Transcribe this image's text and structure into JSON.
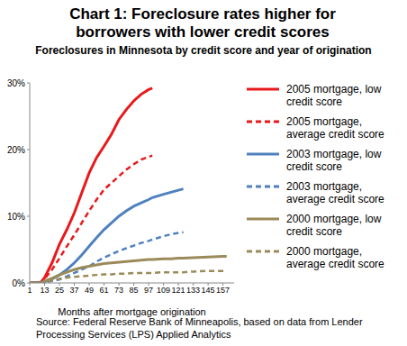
{
  "chart_data": {
    "type": "line",
    "title": "Chart 1: Foreclosure rates higher for borrowers with lower credit scores",
    "subtitle": "Foreclosures in Minnesota by credit score and year of origination",
    "x_label": "Months after mortgage origination",
    "source": "Source: Federal Reserve Bank of Minneapolis, based on data from Lender Processing Services (LPS) Applied Analytics",
    "x": [
      1,
      10,
      13,
      19,
      25,
      31,
      37,
      43,
      49,
      55,
      61,
      67,
      73,
      79,
      85,
      91,
      97,
      100,
      109,
      115,
      121,
      125,
      133,
      145,
      157,
      160
    ],
    "xlim": [
      1,
      166
    ],
    "xticks": [
      1,
      13,
      25,
      37,
      49,
      61,
      73,
      85,
      97,
      109,
      121,
      133,
      145,
      157
    ],
    "ylim": [
      0,
      30
    ],
    "yticks": [
      {
        "value": 0,
        "label": "0%"
      },
      {
        "value": 10,
        "label": "10%"
      },
      {
        "value": 20,
        "label": "20%"
      },
      {
        "value": 30,
        "label": "30%"
      }
    ],
    "grid": false,
    "legend": "right",
    "series": [
      {
        "name": "2005 mortgage, low credit score",
        "color": "#e8191b",
        "line_style": "solid",
        "values": [
          0,
          0.1,
          0.8,
          3,
          5.8,
          8,
          10.5,
          13.5,
          16.5,
          18.8,
          20.5,
          22.3,
          24.5,
          26,
          27.3,
          28.3,
          29,
          29.2,
          null,
          null,
          null,
          null,
          null,
          null,
          null,
          null
        ]
      },
      {
        "name": "2005 mortgage, average credit score",
        "color": "#e8191b",
        "line_style": "dashed",
        "values": [
          0,
          0.1,
          0.6,
          2,
          3.7,
          5.5,
          7.2,
          9,
          10.8,
          12.5,
          14,
          15,
          16,
          17,
          17.8,
          18.5,
          18.9,
          19.1,
          null,
          null,
          null,
          null,
          null,
          null,
          null,
          null
        ]
      },
      {
        "name": "2003 mortgage, low credit score",
        "color": "#4f81bd",
        "line_style": "solid",
        "values": [
          0,
          0,
          0.2,
          0.6,
          1.2,
          2,
          3,
          4.2,
          5.5,
          6.8,
          8,
          9,
          10,
          10.8,
          11.5,
          12,
          12.5,
          12.8,
          13.3,
          13.6,
          13.9,
          14.1,
          null,
          null,
          null,
          null
        ]
      },
      {
        "name": "2003 mortgage, average credit score",
        "color": "#4f81bd",
        "line_style": "dashed",
        "values": [
          0,
          0,
          0.1,
          0.3,
          0.5,
          1,
          1.5,
          2,
          2.5,
          3.2,
          3.8,
          4.3,
          4.8,
          5.2,
          5.6,
          6,
          6.3,
          6.5,
          7,
          7.3,
          7.5,
          7.6,
          null,
          null,
          null,
          null
        ]
      },
      {
        "name": "2000 mortgage, low credit score",
        "color": "#9b8a5a",
        "line_style": "solid",
        "values": [
          0,
          0,
          0.3,
          0.7,
          1.2,
          1.6,
          2,
          2.3,
          2.5,
          2.7,
          2.9,
          3,
          3.1,
          3.2,
          3.3,
          3.4,
          3.5,
          3.5,
          3.6,
          3.6,
          3.7,
          3.7,
          3.8,
          3.9,
          4,
          4
        ]
      },
      {
        "name": "2000 mortgage, average credit score",
        "color": "#9b8a5a",
        "line_style": "dashed",
        "values": [
          0,
          0,
          0.2,
          0.4,
          0.6,
          0.8,
          0.9,
          1,
          1.1,
          1.2,
          1.3,
          1.3,
          1.4,
          1.4,
          1.5,
          1.5,
          1.5,
          1.5,
          1.6,
          1.6,
          1.6,
          1.6,
          1.7,
          1.8,
          1.8,
          1.8
        ]
      }
    ]
  }
}
